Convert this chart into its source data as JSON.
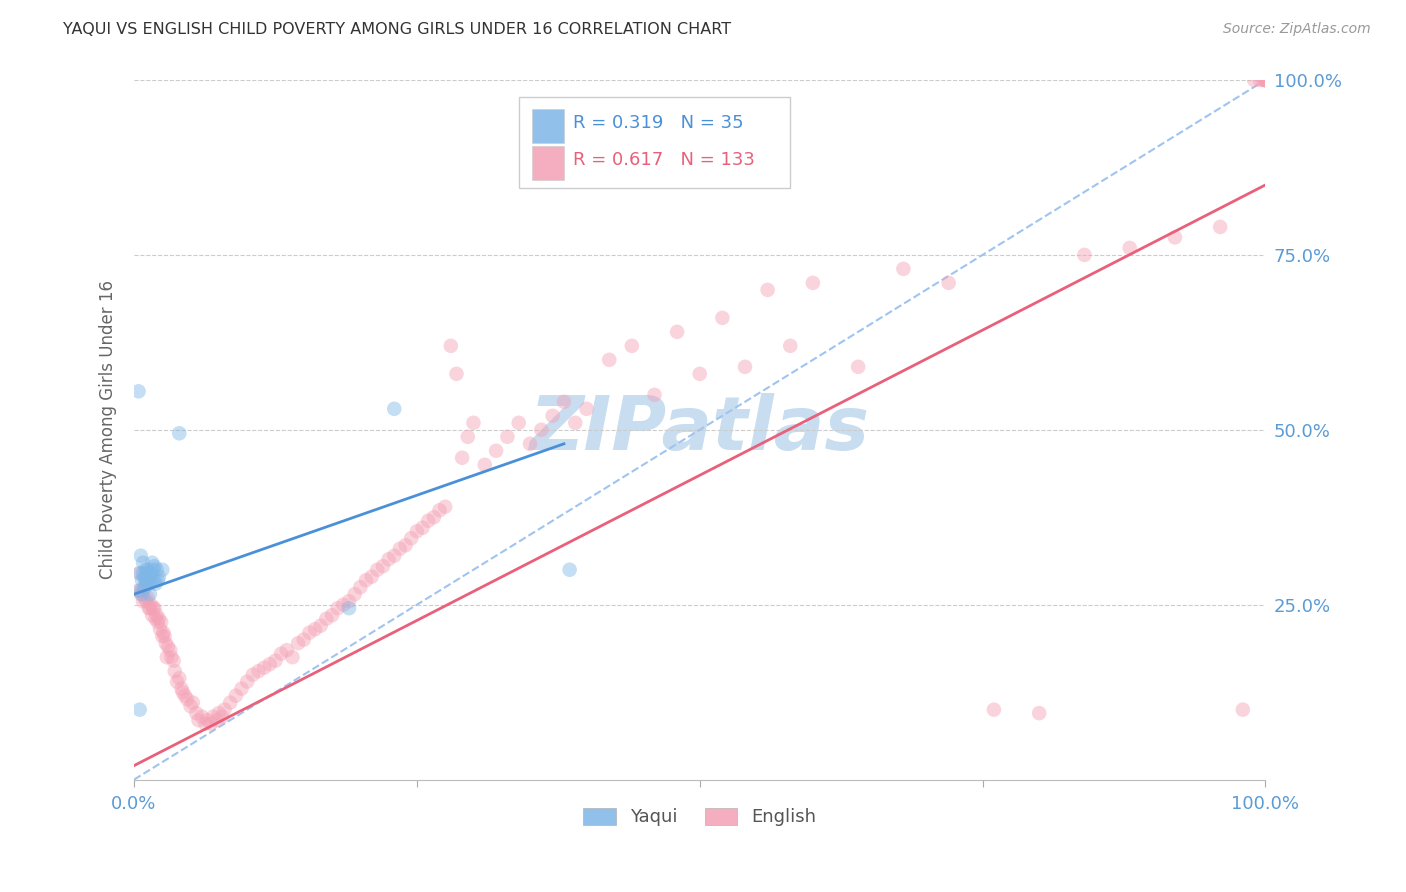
{
  "title": "YAQUI VS ENGLISH CHILD POVERTY AMONG GIRLS UNDER 16 CORRELATION CHART",
  "source_text": "Source: ZipAtlas.com",
  "ylabel": "Child Poverty Among Girls Under 16",
  "legend_blue_r": "0.319",
  "legend_blue_n": "35",
  "legend_pink_r": "0.617",
  "legend_pink_n": "133",
  "legend_label_blue": "Yaqui",
  "legend_label_pink": "English",
  "blue_color": "#7eb6e8",
  "pink_color": "#f4a0b5",
  "blue_line_color": "#4a90d9",
  "pink_line_color": "#e8607a",
  "dashed_line_color": "#a0c4f0",
  "grid_color": "#cccccc",
  "axis_label_color": "#5b9bd5",
  "title_color": "#333333",
  "watermark_color": "#c8ddf0",
  "background_color": "#ffffff",
  "blue_scatter_x": [
    0.004,
    0.005,
    0.005,
    0.006,
    0.007,
    0.007,
    0.008,
    0.008,
    0.009,
    0.009,
    0.01,
    0.01,
    0.011,
    0.011,
    0.012,
    0.012,
    0.013,
    0.013,
    0.014,
    0.015,
    0.015,
    0.016,
    0.017,
    0.018,
    0.018,
    0.019,
    0.02,
    0.021,
    0.022,
    0.025,
    0.04,
    0.19,
    0.23,
    0.385,
    0.005
  ],
  "blue_scatter_y": [
    0.555,
    0.295,
    0.27,
    0.32,
    0.265,
    0.285,
    0.295,
    0.31,
    0.275,
    0.29,
    0.285,
    0.3,
    0.285,
    0.295,
    0.3,
    0.285,
    0.28,
    0.295,
    0.265,
    0.285,
    0.295,
    0.31,
    0.3,
    0.285,
    0.305,
    0.28,
    0.3,
    0.285,
    0.29,
    0.3,
    0.495,
    0.245,
    0.53,
    0.3,
    0.1
  ],
  "pink_scatter_x": [
    0.004,
    0.005,
    0.006,
    0.007,
    0.008,
    0.009,
    0.01,
    0.011,
    0.012,
    0.013,
    0.014,
    0.015,
    0.016,
    0.017,
    0.018,
    0.019,
    0.02,
    0.021,
    0.022,
    0.023,
    0.024,
    0.025,
    0.026,
    0.027,
    0.028,
    0.029,
    0.03,
    0.032,
    0.033,
    0.035,
    0.036,
    0.038,
    0.04,
    0.042,
    0.043,
    0.045,
    0.047,
    0.05,
    0.052,
    0.055,
    0.057,
    0.06,
    0.063,
    0.065,
    0.068,
    0.07,
    0.073,
    0.075,
    0.078,
    0.08,
    0.085,
    0.09,
    0.095,
    0.1,
    0.105,
    0.11,
    0.115,
    0.12,
    0.125,
    0.13,
    0.135,
    0.14,
    0.145,
    0.15,
    0.155,
    0.16,
    0.165,
    0.17,
    0.175,
    0.18,
    0.185,
    0.19,
    0.195,
    0.2,
    0.205,
    0.21,
    0.215,
    0.22,
    0.225,
    0.23,
    0.235,
    0.24,
    0.245,
    0.25,
    0.255,
    0.26,
    0.265,
    0.27,
    0.275,
    0.28,
    0.285,
    0.29,
    0.295,
    0.3,
    0.31,
    0.32,
    0.33,
    0.34,
    0.35,
    0.36,
    0.37,
    0.38,
    0.39,
    0.4,
    0.42,
    0.44,
    0.46,
    0.48,
    0.5,
    0.52,
    0.54,
    0.56,
    0.58,
    0.6,
    0.64,
    0.68,
    0.72,
    0.76,
    0.8,
    0.84,
    0.88,
    0.92,
    0.96,
    0.98,
    0.99,
    0.995,
    0.998,
    1.0,
    1.0,
    1.0,
    1.0,
    1.0,
    1.0
  ],
  "pink_scatter_y": [
    0.27,
    0.295,
    0.265,
    0.27,
    0.255,
    0.26,
    0.275,
    0.255,
    0.26,
    0.245,
    0.245,
    0.25,
    0.235,
    0.245,
    0.245,
    0.23,
    0.235,
    0.225,
    0.23,
    0.215,
    0.225,
    0.205,
    0.21,
    0.205,
    0.195,
    0.175,
    0.19,
    0.185,
    0.175,
    0.17,
    0.155,
    0.14,
    0.145,
    0.13,
    0.125,
    0.12,
    0.115,
    0.105,
    0.11,
    0.095,
    0.085,
    0.09,
    0.08,
    0.085,
    0.08,
    0.09,
    0.085,
    0.095,
    0.09,
    0.1,
    0.11,
    0.12,
    0.13,
    0.14,
    0.15,
    0.155,
    0.16,
    0.165,
    0.17,
    0.18,
    0.185,
    0.175,
    0.195,
    0.2,
    0.21,
    0.215,
    0.22,
    0.23,
    0.235,
    0.245,
    0.25,
    0.255,
    0.265,
    0.275,
    0.285,
    0.29,
    0.3,
    0.305,
    0.315,
    0.32,
    0.33,
    0.335,
    0.345,
    0.355,
    0.36,
    0.37,
    0.375,
    0.385,
    0.39,
    0.62,
    0.58,
    0.46,
    0.49,
    0.51,
    0.45,
    0.47,
    0.49,
    0.51,
    0.48,
    0.5,
    0.52,
    0.54,
    0.51,
    0.53,
    0.6,
    0.62,
    0.55,
    0.64,
    0.58,
    0.66,
    0.59,
    0.7,
    0.62,
    0.71,
    0.59,
    0.73,
    0.71,
    0.1,
    0.095,
    0.75,
    0.76,
    0.775,
    0.79,
    0.1,
    1.0,
    1.0,
    1.0,
    1.0,
    1.0,
    1.0,
    1.0,
    1.0,
    1.0
  ],
  "blue_line_x": [
    0.0,
    0.38
  ],
  "blue_line_y": [
    0.265,
    0.48
  ],
  "pink_line_x": [
    0.0,
    1.0
  ],
  "pink_line_y": [
    0.02,
    0.85
  ],
  "dashed_line_x": [
    0.0,
    1.0
  ],
  "dashed_line_y": [
    0.0,
    1.0
  ],
  "marker_size": 110,
  "marker_alpha": 0.45,
  "xlim": [
    0.0,
    1.0
  ],
  "ylim": [
    0.0,
    1.0
  ]
}
